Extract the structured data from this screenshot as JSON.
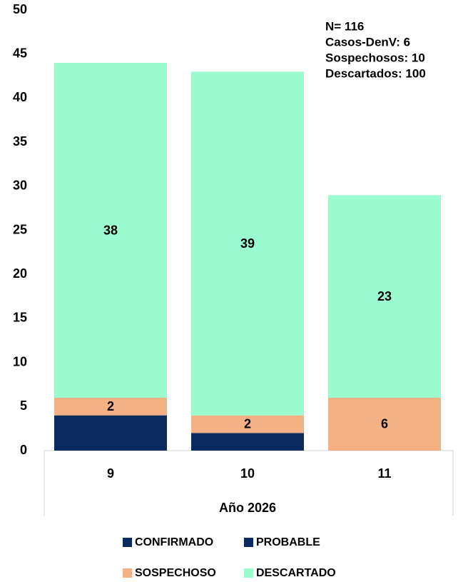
{
  "chart_data": {
    "type": "stacked_bar",
    "categories": [
      "9",
      "10",
      "11"
    ],
    "x_label": "Año 2026",
    "series": [
      {
        "name": "CONFIRMADO",
        "color": "#0b2a5e",
        "values": [
          4,
          2,
          0
        ],
        "show_labels": false
      },
      {
        "name": "PROBABLE",
        "color": "#0b2a5e",
        "values": [
          0,
          0,
          0
        ],
        "show_labels": false
      },
      {
        "name": "SOSPECHOSO",
        "color": "#f4b183",
        "values": [
          2,
          2,
          6
        ],
        "show_labels": true
      },
      {
        "name": "DESCARTADO",
        "color": "#9dfccf",
        "values": [
          38,
          39,
          23
        ],
        "show_labels": true
      }
    ],
    "annotations": [
      "N= 116",
      "Casos-DenV: 6",
      "Sospechosos: 10",
      "Descartados: 100"
    ],
    "ylim": [
      0,
      50
    ],
    "yticks": [
      0,
      5,
      10,
      15,
      20,
      25,
      30,
      35,
      40,
      45,
      50
    ],
    "grid": false
  }
}
